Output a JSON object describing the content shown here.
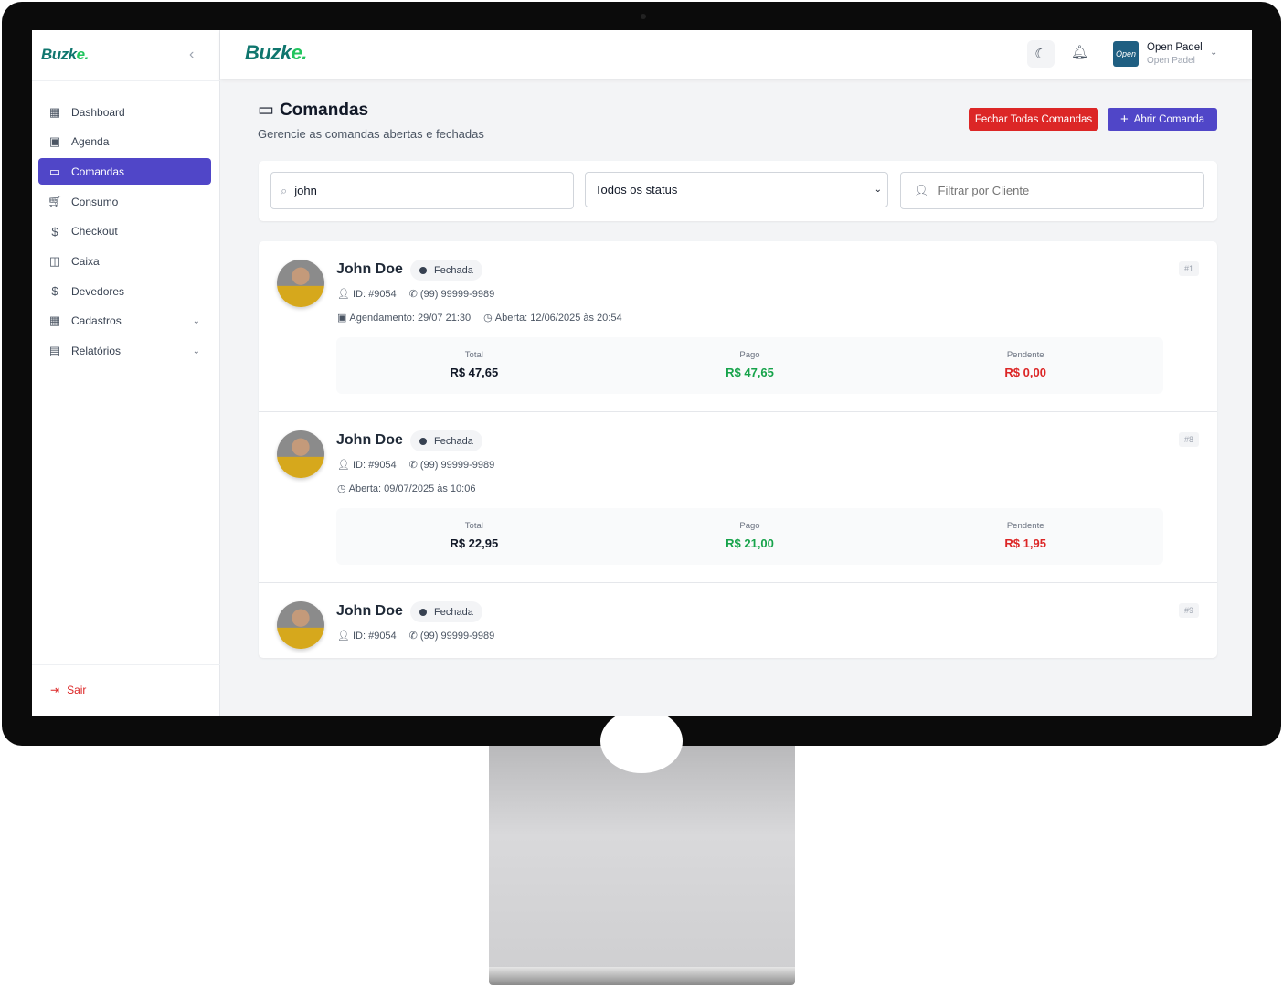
{
  "brand": {
    "logo_main": "Buzk",
    "logo_accent": "e."
  },
  "sidebar": {
    "items": [
      {
        "label": "Dashboard",
        "icon": "grid-icon"
      },
      {
        "label": "Agenda",
        "icon": "calendar-icon"
      },
      {
        "label": "Comandas",
        "icon": "card-icon",
        "active": true
      },
      {
        "label": "Consumo",
        "icon": "cart-icon"
      },
      {
        "label": "Checkout",
        "icon": "dollar-box-icon"
      },
      {
        "label": "Caixa",
        "icon": "wallet-icon"
      },
      {
        "label": "Devedores",
        "icon": "dollar-icon"
      },
      {
        "label": "Cadastros",
        "icon": "grid-icon",
        "expandable": true
      },
      {
        "label": "Relatórios",
        "icon": "report-icon",
        "expandable": true
      }
    ],
    "logout": "Sair"
  },
  "header": {
    "org_name": "Open Padel",
    "org_sub": "Open Padel",
    "org_logo": "Open"
  },
  "page": {
    "title": "Comandas",
    "subtitle": "Gerencie as comandas abertas e fechadas",
    "close_all": "Fechar Todas Comandas",
    "open_new": "Abrir Comanda"
  },
  "filters": {
    "search_value": "john",
    "status_selected": "Todos os status",
    "client_placeholder": "Filtrar por Cliente"
  },
  "labels": {
    "total": "Total",
    "paid": "Pago",
    "pending": "Pendente"
  },
  "colors": {
    "primary": "#5046c8",
    "danger": "#dc2626",
    "success": "#16a34a"
  },
  "comandas": [
    {
      "name": "John Doe",
      "status": "Fechada",
      "number": "#1",
      "id": "ID: #9054",
      "phone": "(99) 99999-9989",
      "schedule": "Agendamento: 29/07 21:30",
      "opened": "Aberta: 12/06/2025 às 20:54",
      "total": "R$ 47,65",
      "paid": "R$ 47,65",
      "pending": "R$ 0,00"
    },
    {
      "name": "John Doe",
      "status": "Fechada",
      "number": "#8",
      "id": "ID: #9054",
      "phone": "(99) 99999-9989",
      "opened": "Aberta: 09/07/2025 às 10:06",
      "total": "R$ 22,95",
      "paid": "R$ 21,00",
      "pending": "R$ 1,95"
    },
    {
      "name": "John Doe",
      "status": "Fechada",
      "number": "#9",
      "id": "ID: #9054",
      "phone": "(99) 99999-9989"
    }
  ]
}
